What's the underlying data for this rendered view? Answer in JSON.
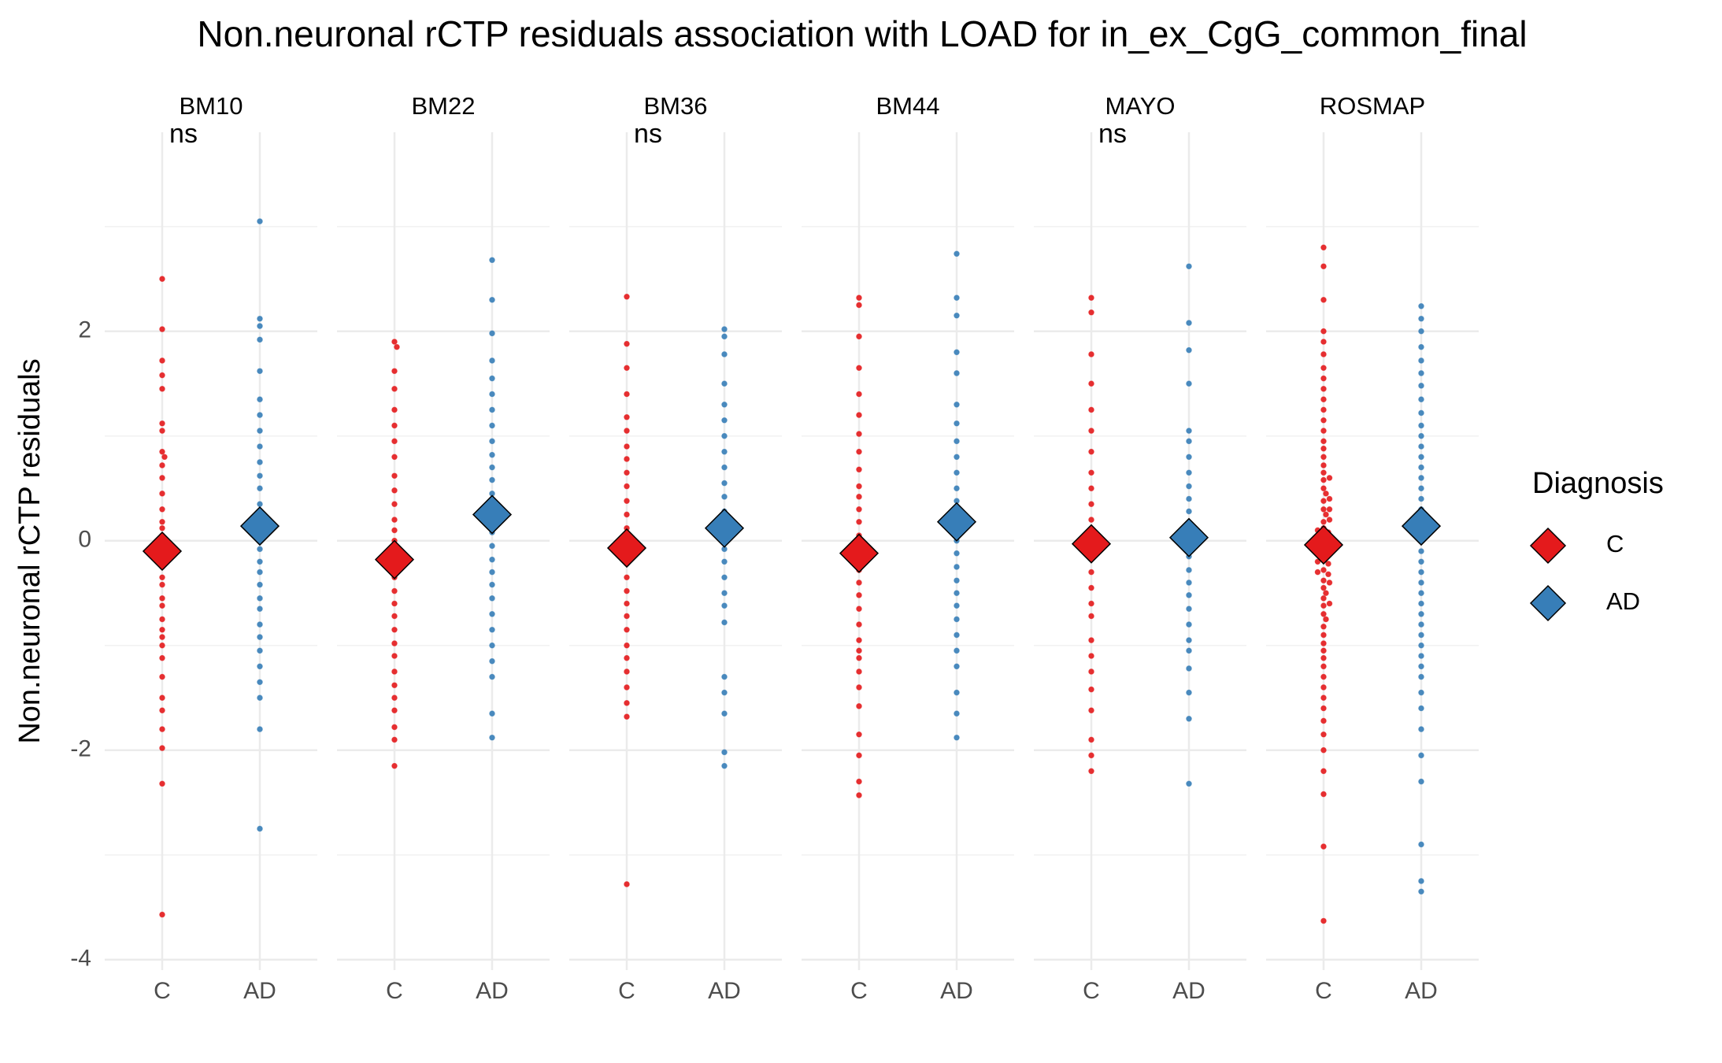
{
  "chart_data": {
    "type": "beeswarm",
    "title": "Non.neuronal rCTP residuals association with LOAD for in_ex_CgG_common_final",
    "y_label": "Non.neuronal rCTP residuals",
    "legend_title": "Diagnosis",
    "series": [
      {
        "name": "C",
        "color": "#e41a1c"
      },
      {
        "name": "AD",
        "color": "#377eb8"
      }
    ],
    "ylim": [
      -4.1,
      3.9
    ],
    "yticks": [
      -4,
      -2,
      0,
      2
    ],
    "minor_yticks": [
      -3,
      -1,
      1,
      3
    ],
    "grid": true,
    "facets": [
      {
        "name": "BM10",
        "annotation": "ns",
        "means": [
          -0.1,
          0.14
        ],
        "values": [
          [
            2.5,
            2.02,
            1.72,
            1.58,
            1.45,
            1.12,
            1.05,
            0.85,
            0.8,
            0.72,
            0.6,
            0.45,
            0.3,
            0.18,
            0.12,
            0.05,
            -0.02,
            -0.1,
            -0.18,
            -0.25,
            -0.35,
            -0.42,
            -0.55,
            -0.62,
            -0.75,
            -0.85,
            -0.92,
            -1.0,
            -1.12,
            -1.3,
            -1.5,
            -1.62,
            -1.8,
            -1.98,
            -2.32,
            -3.57
          ],
          [
            3.05,
            2.12,
            2.05,
            1.92,
            1.62,
            1.35,
            1.2,
            1.05,
            0.9,
            0.75,
            0.62,
            0.5,
            0.35,
            0.22,
            0.1,
            0.0,
            -0.08,
            -0.2,
            -0.3,
            -0.42,
            -0.55,
            -0.65,
            -0.8,
            -0.92,
            -1.05,
            -1.2,
            -1.35,
            -1.5,
            -1.8,
            -2.75
          ]
        ]
      },
      {
        "name": "BM22",
        "means": [
          -0.18,
          0.25
        ],
        "values": [
          [
            1.9,
            1.85,
            1.62,
            1.45,
            1.25,
            1.1,
            0.95,
            0.8,
            0.62,
            0.48,
            0.35,
            0.2,
            0.1,
            0.0,
            -0.1,
            -0.22,
            -0.35,
            -0.48,
            -0.6,
            -0.72,
            -0.85,
            -0.98,
            -1.1,
            -1.25,
            -1.38,
            -1.5,
            -1.62,
            -1.78,
            -1.9,
            -2.15
          ],
          [
            2.68,
            2.3,
            1.98,
            1.72,
            1.55,
            1.4,
            1.25,
            1.1,
            0.95,
            0.82,
            0.7,
            0.58,
            0.45,
            0.32,
            0.2,
            0.08,
            -0.05,
            -0.18,
            -0.3,
            -0.42,
            -0.55,
            -0.7,
            -0.85,
            -1.0,
            -1.15,
            -1.3,
            -1.65,
            -1.88
          ]
        ]
      },
      {
        "name": "BM36",
        "annotation": "ns",
        "means": [
          -0.07,
          0.12
        ],
        "values": [
          [
            2.33,
            1.88,
            1.65,
            1.4,
            1.18,
            1.05,
            0.9,
            0.78,
            0.65,
            0.52,
            0.38,
            0.25,
            0.12,
            0.02,
            -0.1,
            -0.22,
            -0.35,
            -0.48,
            -0.6,
            -0.72,
            -0.85,
            -1.0,
            -1.12,
            -1.25,
            -1.4,
            -1.55,
            -1.68,
            -3.28
          ],
          [
            2.02,
            1.95,
            1.78,
            1.5,
            1.3,
            1.15,
            1.0,
            0.85,
            0.7,
            0.55,
            0.42,
            0.28,
            0.15,
            0.05,
            -0.08,
            -0.2,
            -0.35,
            -0.5,
            -0.62,
            -0.78,
            -1.3,
            -1.45,
            -1.65,
            -2.02,
            -2.15
          ]
        ]
      },
      {
        "name": "BM44",
        "means": [
          -0.12,
          0.18
        ],
        "values": [
          [
            2.32,
            2.25,
            1.95,
            1.65,
            1.4,
            1.2,
            1.02,
            0.85,
            0.68,
            0.52,
            0.42,
            0.3,
            0.18,
            0.05,
            -0.05,
            -0.15,
            -0.28,
            -0.4,
            -0.52,
            -0.65,
            -0.8,
            -0.95,
            -1.05,
            -1.12,
            -1.25,
            -1.4,
            -1.58,
            -1.85,
            -2.05,
            -2.3,
            -2.43
          ],
          [
            2.74,
            2.32,
            2.15,
            1.8,
            1.6,
            1.3,
            1.12,
            0.95,
            0.8,
            0.65,
            0.5,
            0.38,
            0.25,
            0.12,
            0.0,
            -0.12,
            -0.25,
            -0.38,
            -0.5,
            -0.62,
            -0.75,
            -0.9,
            -1.05,
            -1.2,
            -1.45,
            -1.65,
            -1.88
          ]
        ]
      },
      {
        "name": "MAYO",
        "annotation": "ns",
        "means": [
          -0.03,
          0.03
        ],
        "values": [
          [
            2.32,
            2.18,
            1.78,
            1.5,
            1.25,
            1.05,
            0.85,
            0.65,
            0.5,
            0.35,
            0.2,
            0.08,
            -0.05,
            -0.15,
            -0.3,
            -0.45,
            -0.6,
            -0.72,
            -0.95,
            -1.1,
            -1.25,
            -1.42,
            -1.62,
            -1.9,
            -2.05,
            -2.2
          ],
          [
            2.62,
            2.08,
            1.82,
            1.5,
            1.05,
            0.95,
            0.8,
            0.65,
            0.52,
            0.4,
            0.28,
            0.15,
            0.05,
            -0.05,
            -0.15,
            -0.28,
            -0.4,
            -0.52,
            -0.65,
            -0.8,
            -0.95,
            -1.05,
            -1.22,
            -1.45,
            -1.7,
            -2.32
          ]
        ]
      },
      {
        "name": "ROSMAP",
        "means": [
          -0.04,
          0.14
        ],
        "values": [
          [
            2.8,
            2.62,
            2.3,
            2.0,
            1.9,
            1.78,
            1.65,
            1.55,
            1.45,
            1.35,
            1.25,
            1.15,
            1.05,
            0.95,
            0.88,
            0.8,
            0.72,
            0.65,
            0.58,
            0.5,
            0.45,
            0.38,
            0.3,
            0.25,
            0.18,
            0.12,
            0.08,
            0.02,
            -0.02,
            -0.08,
            -0.12,
            -0.18,
            -0.22,
            -0.28,
            -0.32,
            -0.38,
            -0.45,
            -0.5,
            -0.55,
            -0.62,
            -0.7,
            -0.75,
            -0.82,
            -0.9,
            -0.98,
            -1.05,
            -1.12,
            -1.2,
            -1.3,
            -1.4,
            -1.5,
            -1.6,
            -1.72,
            -1.85,
            -2.0,
            -2.2,
            -2.42,
            -2.92,
            -3.63,
            0.6,
            0.4,
            0.2,
            0.0,
            -0.2,
            -0.4,
            -0.6,
            0.1,
            -0.1,
            0.3,
            -0.3
          ],
          [
            2.24,
            2.12,
            2.0,
            1.85,
            1.72,
            1.6,
            1.48,
            1.35,
            1.22,
            1.1,
            1.0,
            0.9,
            0.8,
            0.7,
            0.6,
            0.5,
            0.4,
            0.3,
            0.2,
            0.1,
            0.0,
            -0.1,
            -0.2,
            -0.3,
            -0.4,
            -0.5,
            -0.6,
            -0.7,
            -0.8,
            -0.9,
            -1.0,
            -1.1,
            -1.2,
            -1.3,
            -1.45,
            -1.6,
            -1.8,
            -2.05,
            -2.3,
            -2.9,
            -3.25,
            -3.35
          ]
        ]
      }
    ]
  }
}
